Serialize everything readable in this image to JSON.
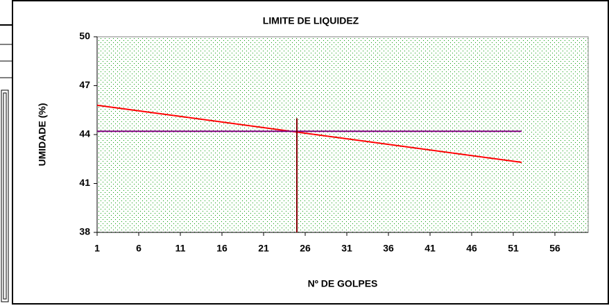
{
  "chart_data": {
    "type": "line",
    "title": "LIMITE DE LIQUIDEZ",
    "x_label": "Nº DE GOLPES",
    "y_label": "UMIDADE (%)",
    "xlim": [
      1,
      60
    ],
    "xticks": [
      1,
      6,
      11,
      16,
      21,
      26,
      31,
      36,
      41,
      46,
      51,
      56
    ],
    "ylim": [
      38,
      50
    ],
    "yticks": [
      38,
      41,
      44,
      47,
      50
    ],
    "grid": false,
    "series": [
      {
        "color": "#ff0000",
        "x": [
          1,
          52
        ],
        "values": [
          45.8,
          42.3
        ]
      },
      {
        "color": "#800080",
        "x": [
          1,
          52
        ],
        "values": [
          44.2,
          44.2
        ]
      },
      {
        "color": "#800000",
        "x": [
          25,
          25
        ],
        "values": [
          38,
          45
        ]
      }
    ]
  }
}
